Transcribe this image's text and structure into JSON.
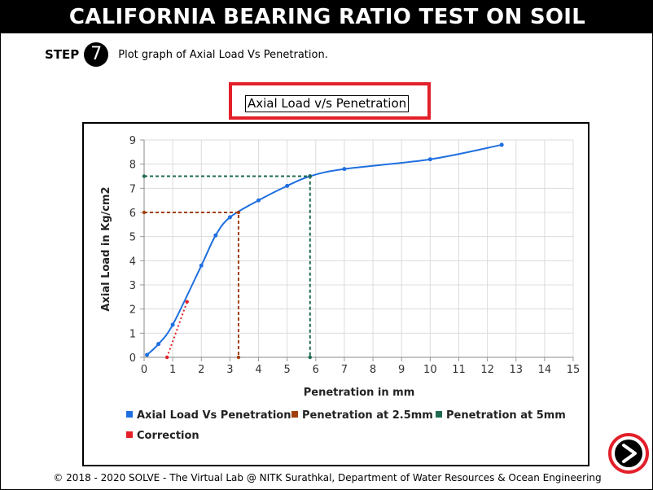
{
  "header": {
    "title": "CALIFORNIA BEARING RATIO TEST ON SOIL"
  },
  "step": {
    "label": "STEP",
    "number": "7",
    "instruction": "Plot graph of Axial Load Vs Penetration."
  },
  "chart_title": "Axial Load v/s Penetration",
  "footer": "© 2018 - 2020 SOLVE - The Virtual Lab @ NITK Surathkal, Department of Water Resources & Ocean Engineering",
  "next_button": {
    "icon": "next-arrow-icon",
    "ring_color": "#e3202a"
  },
  "colors": {
    "accent_red": "#e3202a"
  },
  "chart_data": {
    "type": "line",
    "xlabel": "Penetration in mm",
    "ylabel": "Axial Load in Kg/cm2",
    "xlim": [
      0,
      15
    ],
    "ylim": [
      0,
      9
    ],
    "xticks": [
      0,
      1,
      2,
      3,
      4,
      5,
      6,
      7,
      8,
      9,
      10,
      11,
      12,
      13,
      14,
      15
    ],
    "yticks": [
      0,
      1,
      2,
      3,
      4,
      5,
      6,
      7,
      8,
      9
    ],
    "grid": true,
    "legend_position": "bottom",
    "series": [
      {
        "name": "Axial Load Vs Penetration",
        "color": "#1f6fe0",
        "style": "smooth-line",
        "x": [
          0.1,
          0.5,
          1.0,
          2.0,
          2.5,
          3.0,
          4.0,
          5.0,
          5.8,
          7.0,
          10.0,
          12.5
        ],
        "y": [
          0.1,
          0.55,
          1.35,
          3.8,
          5.05,
          5.8,
          6.5,
          7.1,
          7.5,
          7.8,
          8.2,
          8.8
        ]
      },
      {
        "name": "Penetration at 2.5mm",
        "color": "#a0400c",
        "style": "dashed",
        "x": [
          0,
          3.3,
          3.3
        ],
        "y": [
          6.0,
          6.0,
          0
        ]
      },
      {
        "name": "Penetration at 5mm",
        "color": "#1f6b4f",
        "style": "dashed",
        "x": [
          0,
          5.8,
          5.8
        ],
        "y": [
          7.5,
          7.5,
          0
        ]
      },
      {
        "name": "Correction",
        "color": "#e3202a",
        "style": "dotted",
        "x": [
          0.8,
          1.5
        ],
        "y": [
          0,
          2.3
        ]
      }
    ]
  }
}
